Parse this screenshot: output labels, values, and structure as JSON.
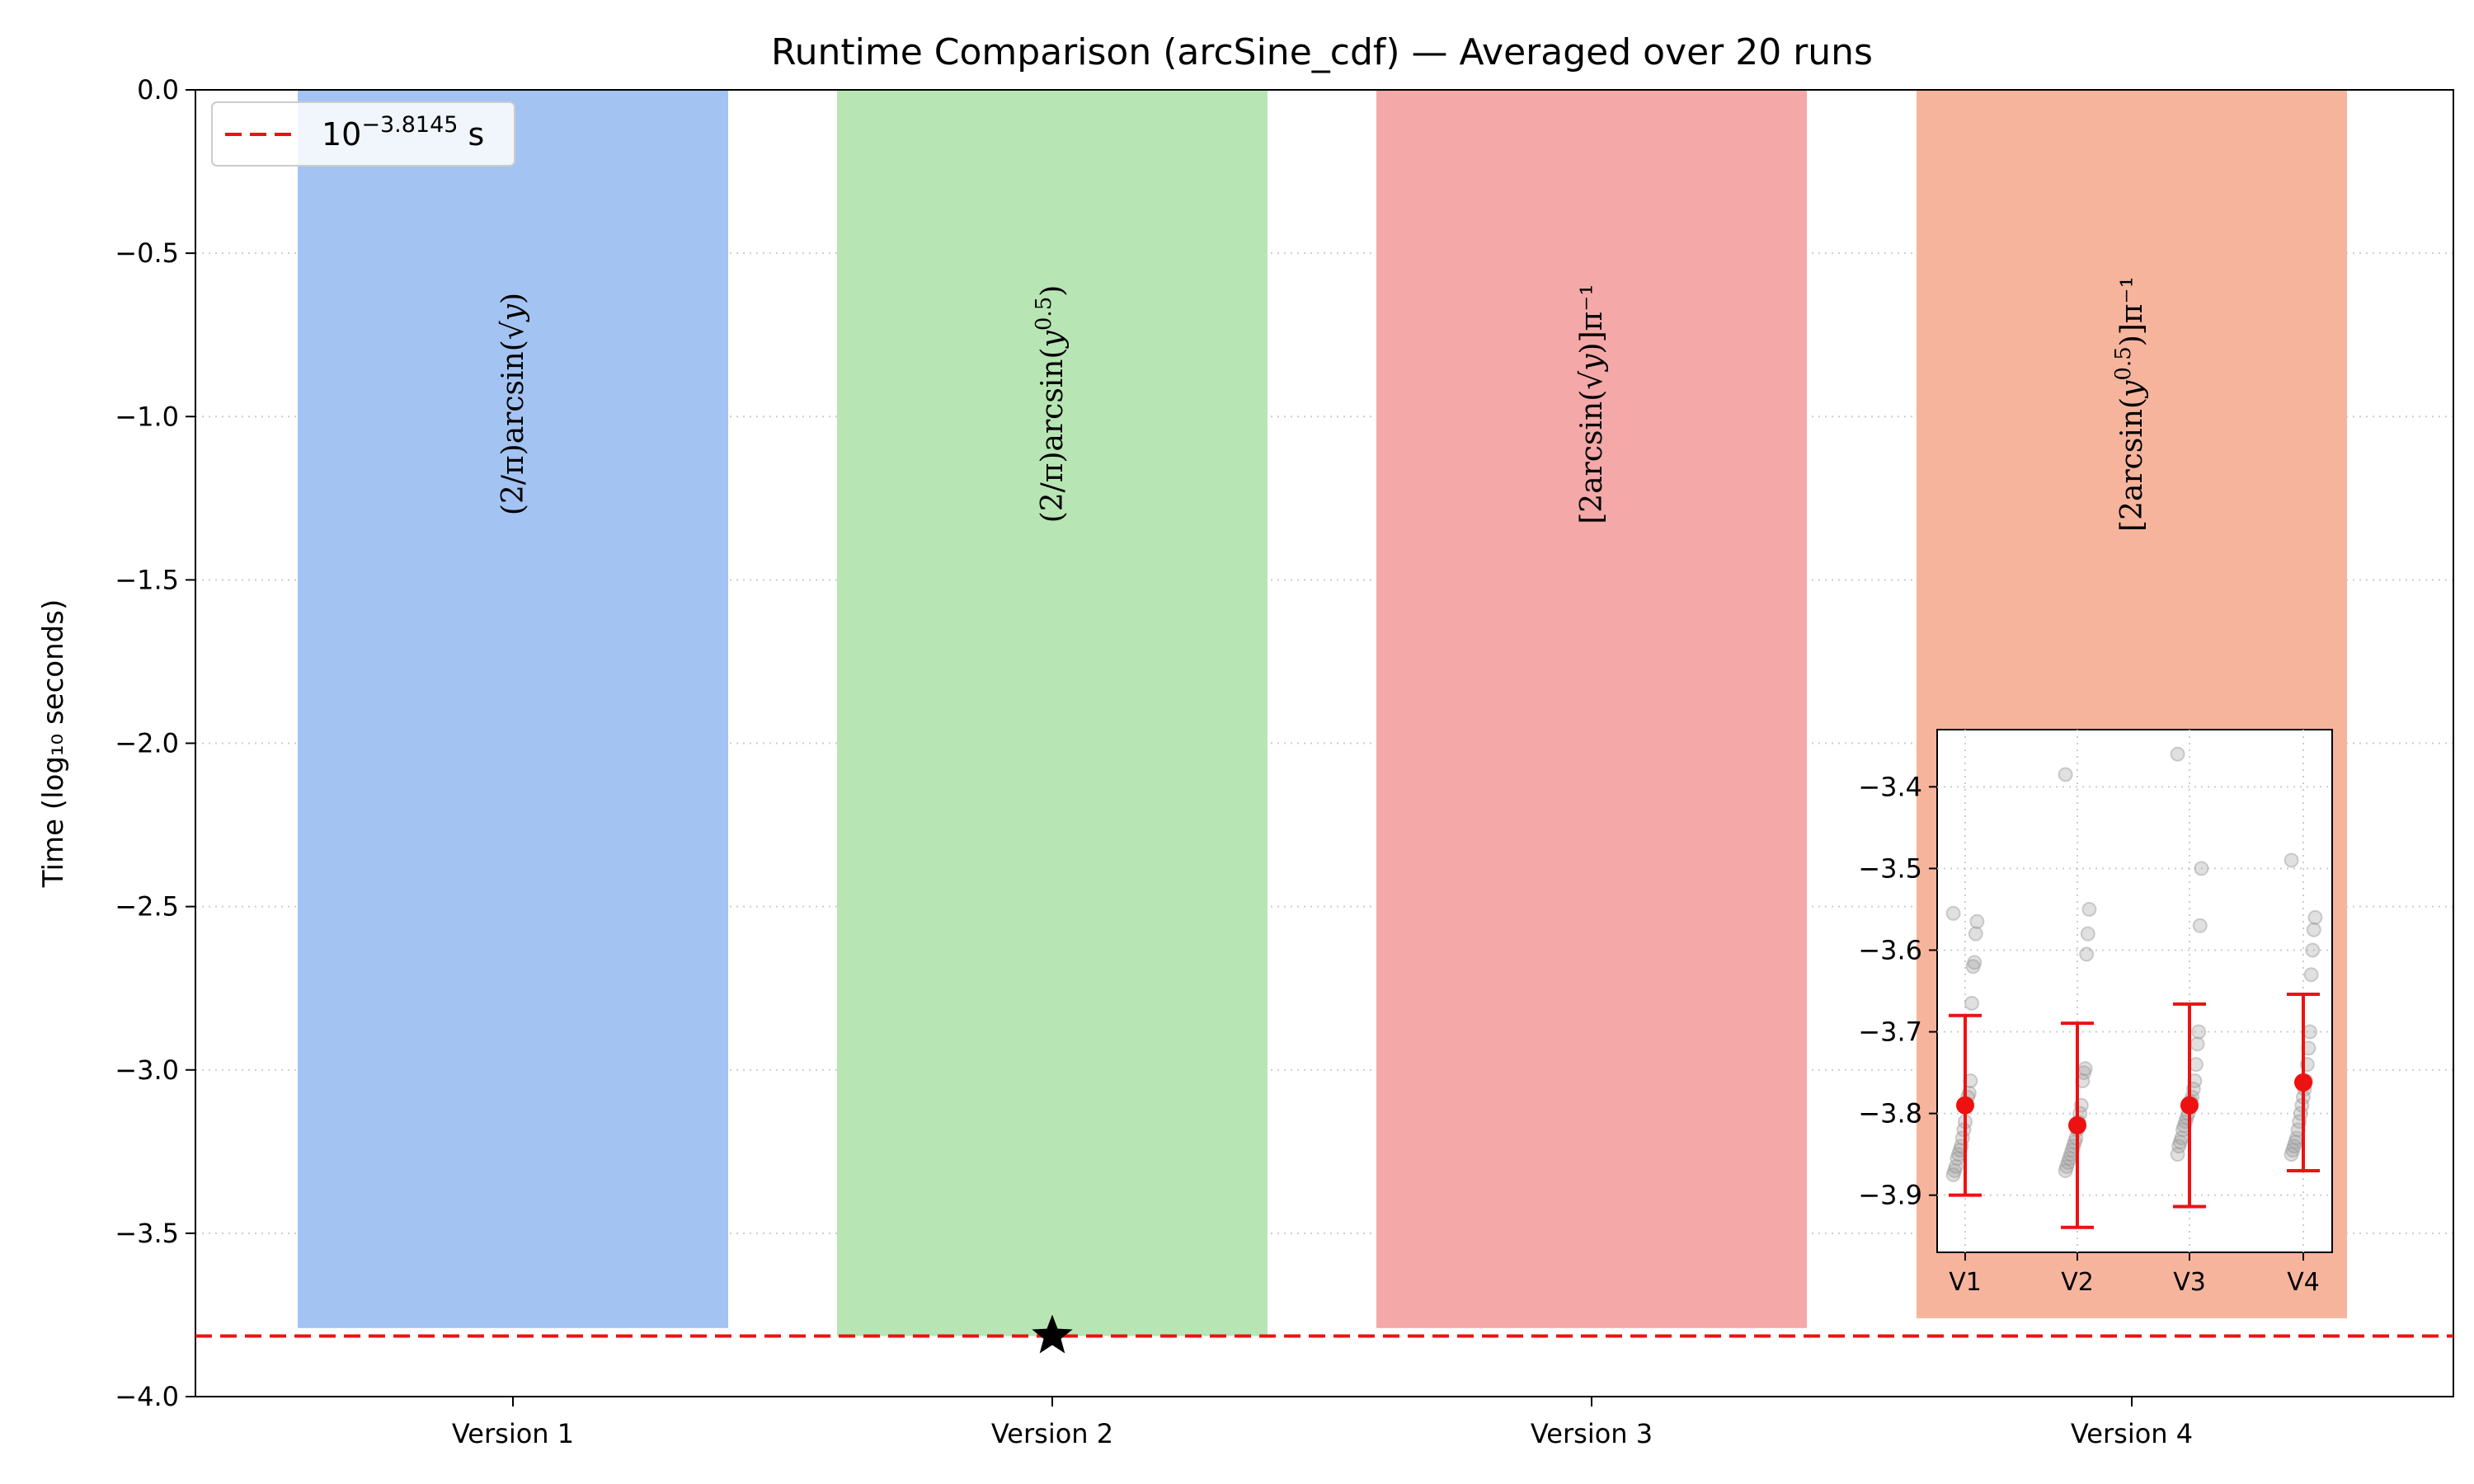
{
  "chart_data": {
    "type": "bar",
    "title": "Runtime Comparison (arcSine_cdf) — Averaged over 20 runs",
    "xlabel": "",
    "ylabel": "Time (log₁₀ seconds)",
    "ylim": [
      -4.0,
      0.0
    ],
    "yticks": [
      0.0,
      -0.5,
      -1.0,
      -1.5,
      -2.0,
      -2.5,
      -3.0,
      -3.5,
      -4.0
    ],
    "ytick_labels": [
      "0.0",
      "−0.5",
      "−1.0",
      "−1.5",
      "−2.0",
      "−2.5",
      "−3.0",
      "−3.5",
      "−4.0"
    ],
    "grid": "y-dotted",
    "legend_position": "top-left",
    "categories": [
      "Version 1",
      "Version 2",
      "Version 3",
      "Version 4"
    ],
    "values": [
      -3.79,
      -3.8145,
      -3.79,
      -3.76
    ],
    "bar_colors": [
      "#a3c3f2",
      "#b8e5b4",
      "#f4a8a8",
      "#f6b49d"
    ],
    "bar_formulas": [
      {
        "pre": "(2/π)arcsin(√",
        "var": "y",
        "post": ")"
      },
      {
        "pre": "(2/π)arcsin(",
        "var": "y",
        "sup": "0.5",
        "post": ")"
      },
      {
        "pre": "[2arcsin(√",
        "var": "y",
        "post": ")]π⁻¹"
      },
      {
        "pre": "[2arcsin(",
        "var": "y",
        "sup": "0.5",
        "post": ")]π⁻¹"
      }
    ],
    "best_marker": {
      "category": "Version 2",
      "value": -3.8145,
      "symbol": "star"
    },
    "reference_line": {
      "value": -3.8145,
      "color": "#ee1111",
      "style": "dashed",
      "legend_base": "10",
      "legend_exp": "−3.8145",
      "legend_unit": "s"
    },
    "inset": {
      "ylim": [
        -3.97,
        -3.33
      ],
      "yticks": [
        -3.4,
        -3.5,
        -3.6,
        -3.7,
        -3.8,
        -3.9
      ],
      "ytick_labels": [
        "−3.4",
        "−3.5",
        "−3.6",
        "−3.7",
        "−3.8",
        "−3.9"
      ],
      "categories": [
        "V1",
        "V2",
        "V3",
        "V4"
      ],
      "means": [
        -3.79,
        -3.8145,
        -3.79,
        -3.762
      ],
      "error_bars": [
        0.11,
        0.125,
        0.124,
        0.108
      ],
      "marker_color": "#ee1111",
      "point_color": "#999999",
      "runs": [
        [
          -3.555,
          -3.565,
          -3.58,
          -3.615,
          -3.62,
          -3.665,
          -3.76,
          -3.775,
          -3.78,
          -3.79,
          -3.81,
          -3.82,
          -3.83,
          -3.84,
          -3.845,
          -3.85,
          -3.855,
          -3.865,
          -3.87,
          -3.875
        ],
        [
          -3.385,
          -3.55,
          -3.58,
          -3.605,
          -3.745,
          -3.75,
          -3.76,
          -3.79,
          -3.8,
          -3.81,
          -3.82,
          -3.83,
          -3.835,
          -3.84,
          -3.845,
          -3.85,
          -3.855,
          -3.86,
          -3.865,
          -3.87
        ],
        [
          -3.36,
          -3.5,
          -3.57,
          -3.7,
          -3.715,
          -3.74,
          -3.76,
          -3.77,
          -3.78,
          -3.785,
          -3.79,
          -3.8,
          -3.805,
          -3.81,
          -3.815,
          -3.82,
          -3.83,
          -3.835,
          -3.84,
          -3.85
        ],
        [
          -3.49,
          -3.56,
          -3.575,
          -3.6,
          -3.63,
          -3.7,
          -3.72,
          -3.74,
          -3.76,
          -3.77,
          -3.78,
          -3.79,
          -3.8,
          -3.81,
          -3.82,
          -3.83,
          -3.835,
          -3.84,
          -3.845,
          -3.85
        ]
      ]
    }
  }
}
